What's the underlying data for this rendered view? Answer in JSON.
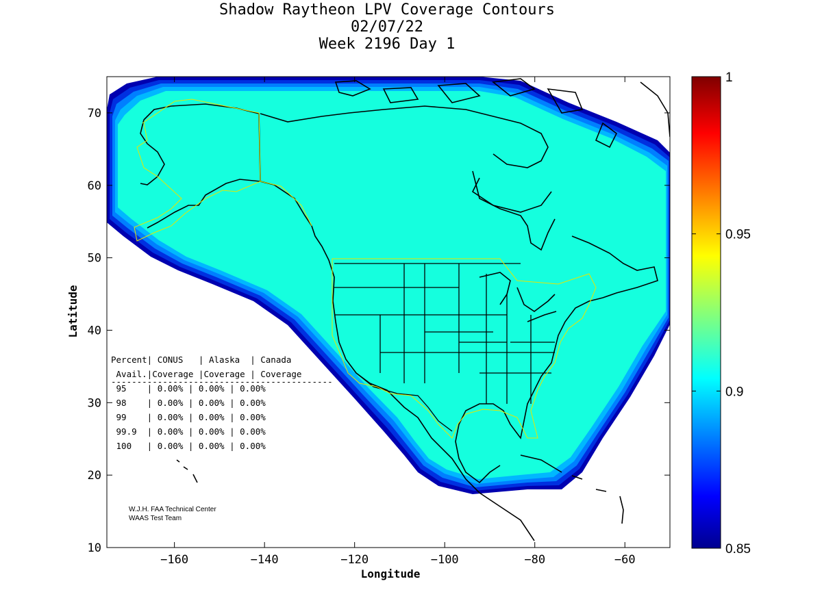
{
  "title": {
    "line1": "Shadow Raytheon LPV Coverage Contours",
    "line2": "02/07/22",
    "line3": "Week 2196 Day 1"
  },
  "axes": {
    "xlabel": "Longitude",
    "ylabel": "Latitude",
    "xlim": [
      -175,
      -50
    ],
    "ylim": [
      10,
      75
    ],
    "xticks": [
      -160,
      -140,
      -120,
      -100,
      -80,
      -60
    ],
    "yticks": [
      10,
      20,
      30,
      40,
      50,
      60,
      70
    ]
  },
  "colorbar": {
    "min": 0.85,
    "max": 1,
    "ticks": [
      {
        "value": 1,
        "label": "1"
      },
      {
        "value": 0.95,
        "label": "0.95"
      },
      {
        "value": 0.9,
        "label": "0.9"
      },
      {
        "value": 0.85,
        "label": "0.85"
      }
    ],
    "colors": [
      "#00008f",
      "#0000ff",
      "#00ffff",
      "#ffff00",
      "#ff0000",
      "#800000"
    ]
  },
  "coverage_colors": {
    "main": "#15ffde",
    "edge": [
      "#00b8ff",
      "#007fff",
      "#0030e0",
      "#0000b0"
    ]
  },
  "table": {
    "header1": "Percent| CONUS   | Alaska  | Canada",
    "header2": " Avail.|Coverage |Coverage | Coverage",
    "rule": "-------------------------------------------",
    "rows": [
      {
        "percent": "95",
        "conus": "0.00%",
        "alaska": "0.00%",
        "canada": "0.00%"
      },
      {
        "percent": "98",
        "conus": "0.00%",
        "alaska": "0.00%",
        "canada": "0.00%"
      },
      {
        "percent": "99",
        "conus": "0.00%",
        "alaska": "0.00%",
        "canada": "0.00%"
      },
      {
        "percent": "99.9",
        "conus": "0.00%",
        "alaska": "0.00%",
        "canada": "0.00%"
      },
      {
        "percent": "100",
        "conus": "0.00%",
        "alaska": "0.00%",
        "canada": "0.00%"
      }
    ]
  },
  "credit": {
    "line1": "W.J.H. FAA Technical Center",
    "line2": "WAAS Test Team"
  }
}
